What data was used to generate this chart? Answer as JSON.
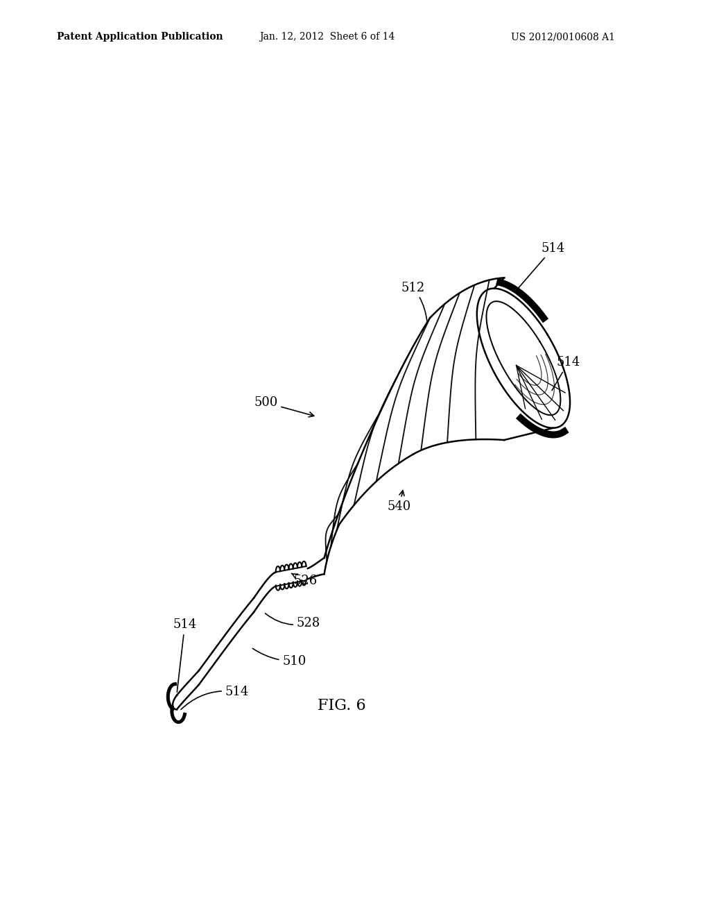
{
  "bg_color": "#ffffff",
  "title_left": "Patent Application Publication",
  "title_center": "Jan. 12, 2012  Sheet 6 of 14",
  "title_right": "US 2012/0010608 A1",
  "fig_label": "FIG. 6",
  "line_width": 1.8,
  "text_fontsize": 13
}
